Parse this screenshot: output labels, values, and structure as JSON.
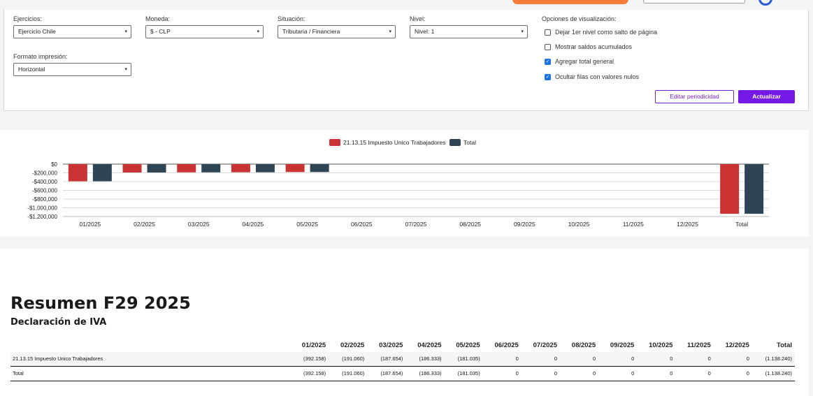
{
  "filters": {
    "ejercicios": {
      "label": "Ejercicios:",
      "value": "Ejercicio Chile"
    },
    "moneda": {
      "label": "Moneda:",
      "value": "$ - CLP"
    },
    "situacion": {
      "label": "Situación:",
      "value": "Tributaria / Financiera"
    },
    "nivel": {
      "label": "Nivel:",
      "value": "Nivel: 1"
    },
    "formato": {
      "label": "Formato impresión:",
      "value": "Horizontal"
    }
  },
  "options": {
    "title": "Opciones de visualización:",
    "items": [
      {
        "label": "Dejar 1er nivel como salto de página",
        "checked": false
      },
      {
        "label": "Mostrar saldos acumulados",
        "checked": false
      },
      {
        "label": "Agregar total general",
        "checked": true
      },
      {
        "label": "Ocultar filas con valores nulos",
        "checked": true
      }
    ]
  },
  "buttons": {
    "edit": "Editar periodicidad",
    "update": "Actualizar"
  },
  "chart_data": {
    "type": "bar",
    "categories": [
      "01/2025",
      "02/2025",
      "03/2025",
      "04/2025",
      "05/2025",
      "06/2025",
      "07/2025",
      "08/2025",
      "09/2025",
      "10/2025",
      "11/2025",
      "12/2025",
      "Total"
    ],
    "series": [
      {
        "name": "21.13.15 Impuesto Unico Trabajadores",
        "color": "#c93333",
        "values": [
          -392158,
          -191060,
          -187654,
          -186333,
          -181035,
          0,
          0,
          0,
          0,
          0,
          0,
          0,
          -1138240
        ]
      },
      {
        "name": "Total",
        "color": "#2e4556",
        "values": [
          -392158,
          -191060,
          -187654,
          -186333,
          -181035,
          0,
          0,
          0,
          0,
          0,
          0,
          0,
          -1138240
        ]
      }
    ],
    "y_ticks": [
      "$0",
      "-$200,000",
      "-$400,000",
      "-$600,000",
      "-$800,000",
      "-$1,000,000",
      "-$1,200,000"
    ],
    "ylim": [
      -1200000,
      0
    ],
    "grid": true,
    "legend": "top-center"
  },
  "summary": {
    "title": "Resumen F29 2025",
    "subtitle": "Declaración de IVA",
    "columns": [
      "01/2025",
      "02/2025",
      "03/2025",
      "04/2025",
      "05/2025",
      "06/2025",
      "07/2025",
      "08/2025",
      "09/2025",
      "10/2025",
      "11/2025",
      "12/2025",
      "Total"
    ],
    "rows": [
      {
        "name": "21.13.15 Impuesto Unico Trabajadores",
        "values": [
          "(392.158)",
          "(191.060)",
          "(187.654)",
          "(186.333)",
          "(181.035)",
          "0",
          "0",
          "0",
          "0",
          "0",
          "0",
          "0",
          "(1.138.240)"
        ]
      },
      {
        "name": "Total",
        "values": [
          "(392.158)",
          "(191.060)",
          "(187.654)",
          "(186.333)",
          "(181.035)",
          "0",
          "0",
          "0",
          "0",
          "0",
          "0",
          "0",
          "(1.138.240)"
        ]
      }
    ]
  }
}
